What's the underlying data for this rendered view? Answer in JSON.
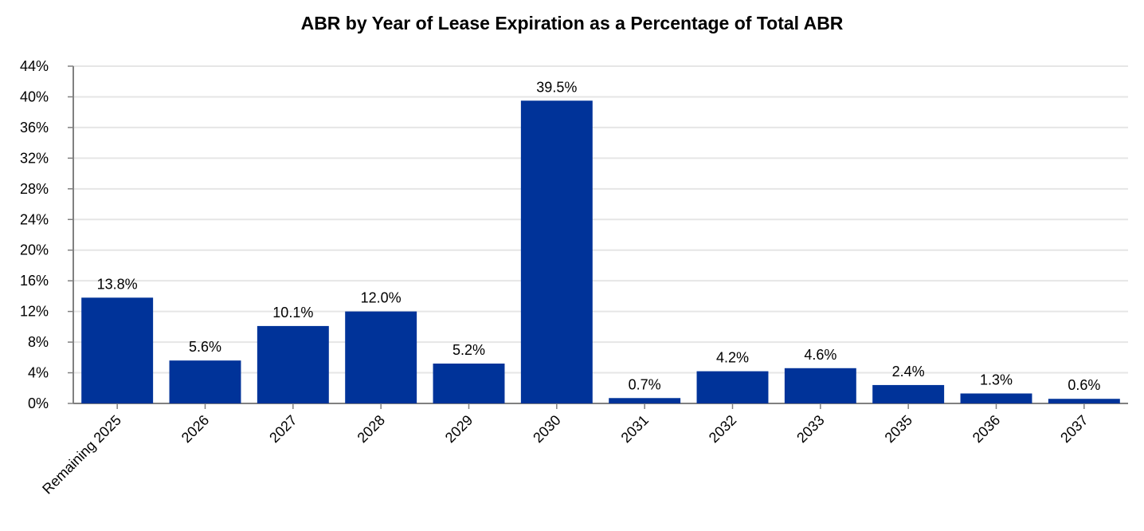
{
  "chart_data": {
    "type": "bar",
    "title": "ABR by Year of Lease Expiration as a Percentage of Total ABR",
    "categories": [
      "Remaining 2025",
      "2026",
      "2027",
      "2028",
      "2029",
      "2030",
      "2031",
      "2032",
      "2033",
      "2035",
      "2036",
      "2037"
    ],
    "values": [
      13.8,
      5.6,
      10.1,
      12.0,
      5.2,
      39.5,
      0.7,
      4.2,
      4.6,
      2.4,
      1.3,
      0.6
    ],
    "value_labels": [
      "13.8%",
      "5.6%",
      "10.1%",
      "12.0%",
      "5.2%",
      "39.5%",
      "0.7%",
      "4.2%",
      "4.6%",
      "2.4%",
      "1.3%",
      "0.6%"
    ],
    "ylim": [
      0,
      44
    ],
    "yticks": [
      0,
      4,
      8,
      12,
      16,
      20,
      24,
      28,
      32,
      36,
      40,
      44
    ],
    "ytick_labels": [
      "0%",
      "4%",
      "8%",
      "12%",
      "16%",
      "20%",
      "24%",
      "28%",
      "32%",
      "36%",
      "40%",
      "44%"
    ],
    "xlabel": "",
    "ylabel": "",
    "grid": true,
    "bar_color": "#003399",
    "grid_color": "#e6e6e6",
    "axis_color": "#808080"
  }
}
